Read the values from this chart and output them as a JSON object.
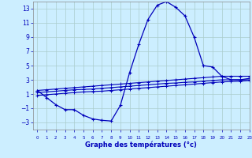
{
  "xlabel": "Graphe des températures (°c)",
  "background_color": "#cceeff",
  "grid_color": "#aacccc",
  "line_color": "#0000bb",
  "hours": [
    0,
    1,
    2,
    3,
    4,
    5,
    6,
    7,
    8,
    9,
    10,
    11,
    12,
    13,
    14,
    15,
    16,
    17,
    18,
    19,
    20,
    21,
    22,
    23
  ],
  "temp_main": [
    1.5,
    0.5,
    -0.5,
    -1.2,
    -1.2,
    -2.0,
    -2.5,
    -2.7,
    -2.8,
    -0.6,
    4.0,
    8.0,
    11.5,
    13.5,
    14.0,
    13.2,
    12.0,
    9.0,
    5.0,
    4.8,
    3.5,
    3.0,
    3.0,
    3.2
  ],
  "temp_line2": [
    1.5,
    1.6,
    1.7,
    1.8,
    1.9,
    2.0,
    2.1,
    2.2,
    2.3,
    2.4,
    2.5,
    2.6,
    2.7,
    2.8,
    2.9,
    3.0,
    3.1,
    3.2,
    3.3,
    3.4,
    3.5,
    3.5,
    3.5,
    3.5
  ],
  "temp_line3": [
    1.2,
    1.3,
    1.4,
    1.5,
    1.6,
    1.65,
    1.7,
    1.8,
    1.9,
    2.0,
    2.1,
    2.2,
    2.3,
    2.4,
    2.5,
    2.55,
    2.65,
    2.7,
    2.8,
    2.9,
    3.0,
    3.0,
    3.0,
    3.0
  ],
  "temp_line4": [
    0.8,
    0.9,
    1.0,
    1.1,
    1.2,
    1.3,
    1.35,
    1.4,
    1.5,
    1.6,
    1.7,
    1.8,
    1.9,
    2.0,
    2.1,
    2.2,
    2.3,
    2.4,
    2.5,
    2.6,
    2.7,
    2.75,
    2.8,
    2.9
  ],
  "ylim": [
    -4,
    14
  ],
  "yticks": [
    -3,
    -1,
    1,
    3,
    5,
    7,
    9,
    11,
    13
  ],
  "xlim": [
    -0.5,
    23
  ]
}
